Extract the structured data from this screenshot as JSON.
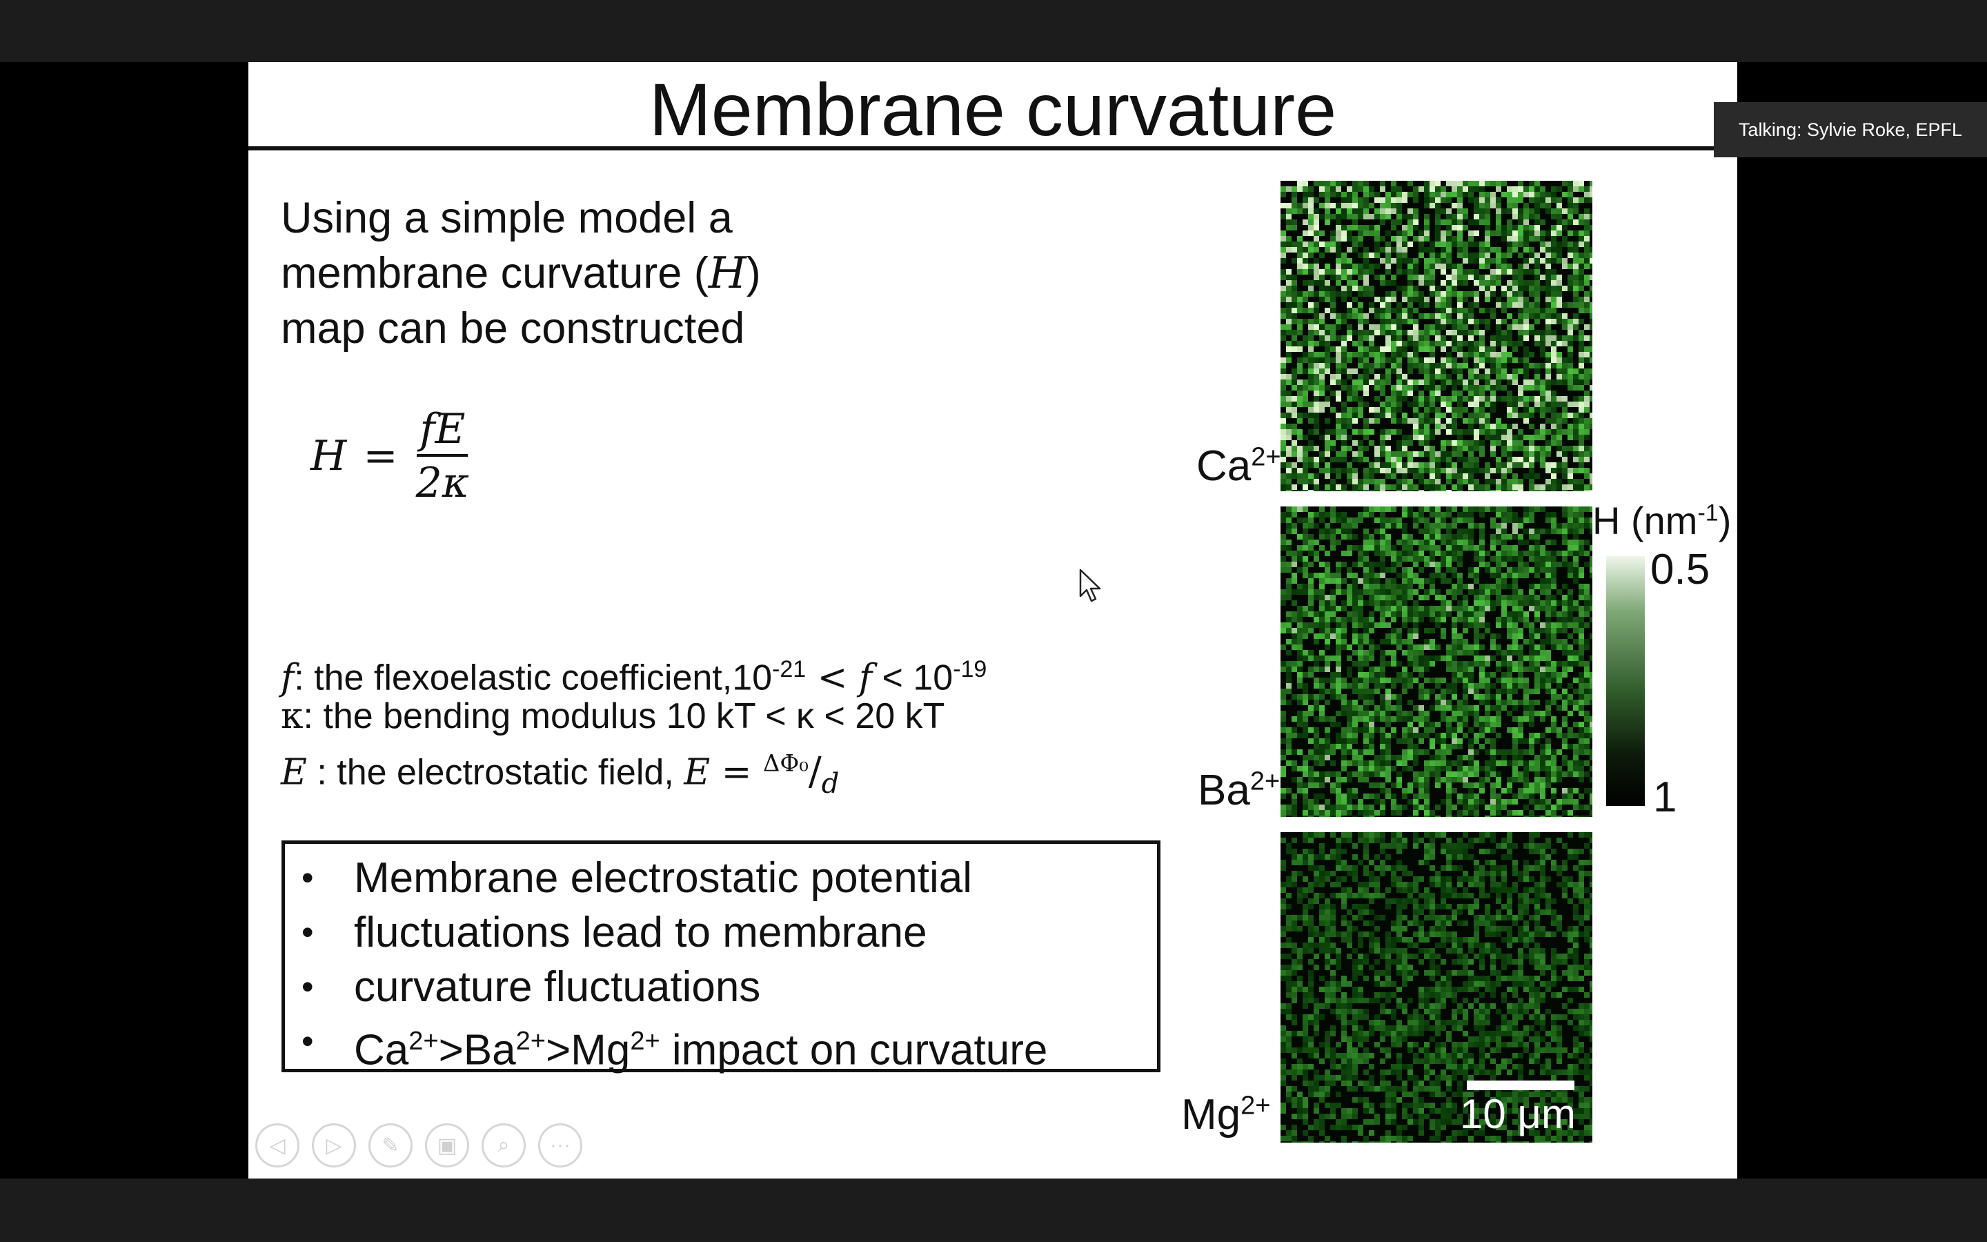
{
  "slide": {
    "title": "Membrane curvature",
    "intro_lines": [
      "Using a simple model a",
      "membrane curvature (",
      ")",
      "map can be constructed"
    ],
    "intro_var": "H",
    "equation": {
      "lhs": "H",
      "op": "=",
      "numerator": "fE",
      "denominator": "2κ"
    },
    "definitions": {
      "f_var": "f",
      "f_text": ": the flexoelastic coefficient,10",
      "f_exp_low": "-21",
      "f_lt1": " < ",
      "f_var2": "f",
      "f_lt2": " < 10",
      "f_exp_high": "-19",
      "kappa_sym": "κ",
      "kappa_text": ": the bending modulus 10 kT < κ < 20 kT",
      "e_var": "E",
      "e_text": " : the electrostatic field, ",
      "e_var2": "E",
      "e_eq": " = ",
      "e_num": "ΔΦ₀",
      "e_slash": "/",
      "e_den": "d"
    },
    "summary": {
      "bullet1_lines": [
        "Membrane electrostatic potential",
        "fluctuations lead to membrane",
        "curvature fluctuations"
      ],
      "bullet2": {
        "ca": "Ca",
        "gt1": ">Ba",
        "gt2": ">Mg",
        "rest": " impact on curvature",
        "charge": "2+"
      }
    },
    "maps": [
      {
        "ion": "Ca",
        "charge": "2+",
        "brightness": 1.0
      },
      {
        "ion": "Ba",
        "charge": "2+",
        "brightness": 0.72
      },
      {
        "ion": "Mg",
        "charge": "2+",
        "brightness": 0.42
      }
    ],
    "colorbar": {
      "title": "H (nm",
      "title_exp": "-1",
      "title_close": ")",
      "top_value": "0.5",
      "bottom_value": "1"
    },
    "scale_bar_label": "10 μm",
    "controls": [
      "prev-icon",
      "next-icon",
      "pen-icon",
      "slides-icon",
      "zoom-icon",
      "more-icon"
    ]
  },
  "talking_indicator": "Talking: Sylvie Roke, EPFL",
  "colors": {
    "map_green": "#9fcf8f",
    "background": "#000000",
    "badge": "#2a2a2a"
  }
}
